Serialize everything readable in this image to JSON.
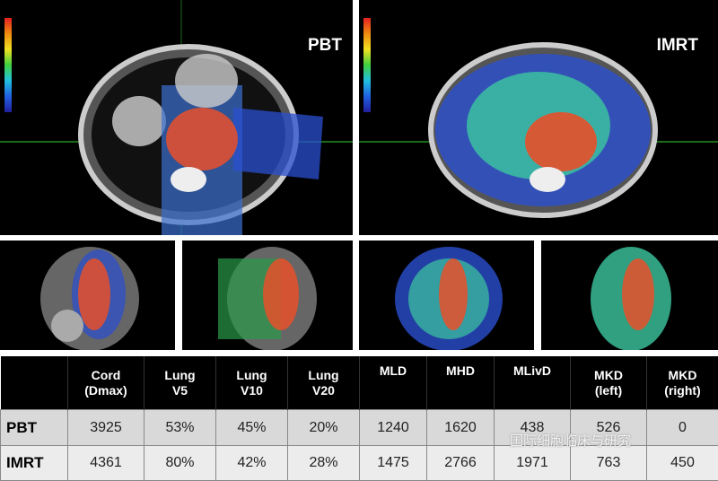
{
  "panels": {
    "left_label": "PBT",
    "right_label": "IMRT"
  },
  "colors": {
    "high_dose": "#e8502a",
    "mid_dose": "#3cc86a",
    "low_dose": "#2a4fd0",
    "header_bg": "#000000"
  },
  "table": {
    "headers": [
      [
        "",
        ""
      ],
      [
        "Cord",
        "(Dmax)"
      ],
      [
        "Lung",
        "V5"
      ],
      [
        "Lung",
        "V10"
      ],
      [
        "Lung",
        "V20"
      ],
      [
        "MLD",
        ""
      ],
      [
        "MHD",
        ""
      ],
      [
        "MLivD",
        ""
      ],
      [
        "MKD",
        "(left)"
      ],
      [
        "MKD",
        "(right)"
      ]
    ],
    "rows": [
      {
        "label": "PBT",
        "values": [
          "3925",
          "53%",
          "45%",
          "20%",
          "1240",
          "1620",
          "438",
          "526",
          "0"
        ]
      },
      {
        "label": "IMRT",
        "values": [
          "4361",
          "80%",
          "42%",
          "28%",
          "1475",
          "2766",
          "1971",
          "763",
          "450"
        ]
      }
    ]
  },
  "watermark": "国际细胞临床与研究"
}
